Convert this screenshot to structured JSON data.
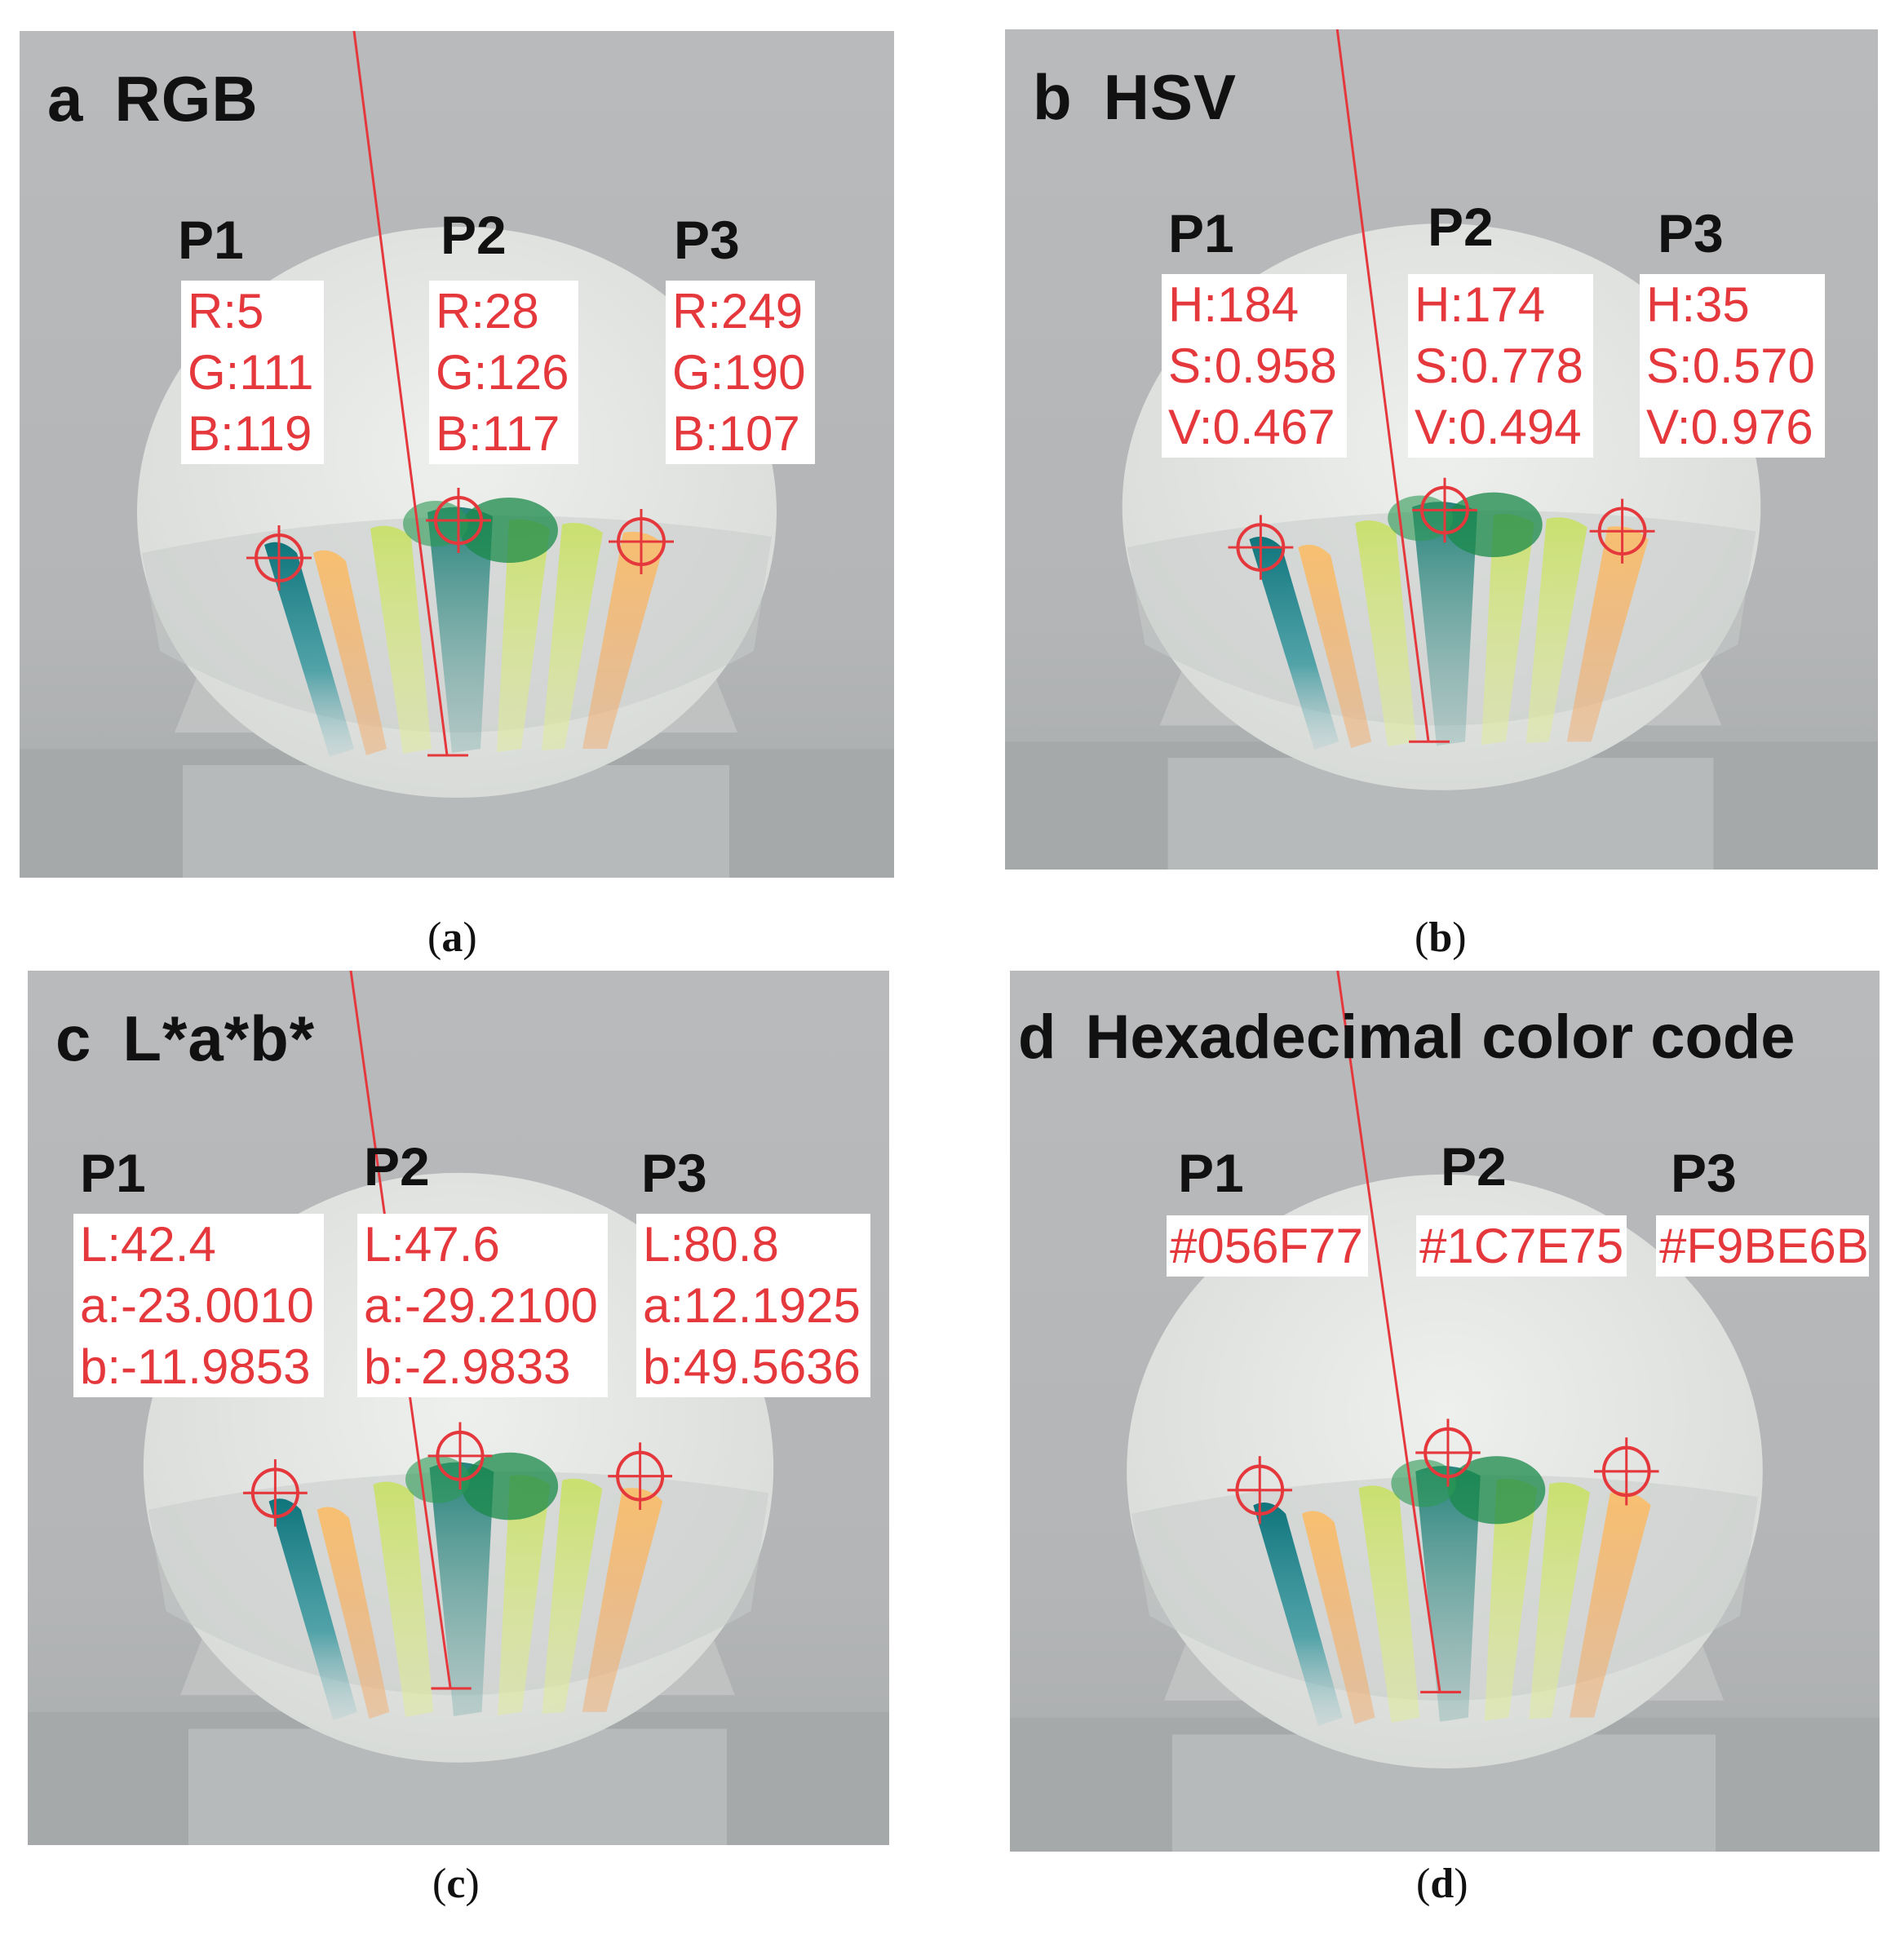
{
  "panels": [
    {
      "letter": "a",
      "title": "RGB",
      "caption_letter": "a",
      "points": [
        {
          "label": "P1",
          "values": [
            "R:5",
            "G:111",
            "B:119"
          ]
        },
        {
          "label": "P2",
          "values": [
            "R:28",
            "G:126",
            "B:117"
          ]
        },
        {
          "label": "P3",
          "values": [
            "R:249",
            "G:190",
            "B:107"
          ]
        }
      ]
    },
    {
      "letter": "b",
      "title": "HSV",
      "caption_letter": "b",
      "points": [
        {
          "label": "P1",
          "values": [
            "H:184",
            "S:0.958",
            "V:0.467"
          ]
        },
        {
          "label": "P2",
          "values": [
            "H:174",
            "S:0.778",
            "V:0.494"
          ]
        },
        {
          "label": "P3",
          "values": [
            "H:35",
            "S:0.570",
            "V:0.976"
          ]
        }
      ]
    },
    {
      "letter": "c",
      "title": "L*a*b*",
      "caption_letter": "c",
      "points": [
        {
          "label": "P1",
          "values": [
            "L:42.4",
            "a:-23.0010",
            "b:-11.9853"
          ]
        },
        {
          "label": "P2",
          "values": [
            "L:47.6",
            "a:-29.2100",
            "b:-2.9833"
          ]
        },
        {
          "label": "P3",
          "values": [
            "L:80.8",
            "a:12.1925",
            "b:49.5636"
          ]
        }
      ]
    },
    {
      "letter": "d",
      "title": "Hexadecimal color code",
      "caption_letter": "d",
      "points": [
        {
          "label": "P1",
          "values": [
            "#056F77"
          ]
        },
        {
          "label": "P2",
          "values": [
            "#1C7E75"
          ]
        },
        {
          "label": "P3",
          "values": [
            "#F9BE6B"
          ]
        }
      ]
    }
  ],
  "colors": {
    "teal_spot": "#056F77",
    "green_spot": "#1C7E75",
    "orange_spot": "#F9BE6B",
    "annotation_red": "#e5383d",
    "background_gray": "#b7b8ba"
  }
}
